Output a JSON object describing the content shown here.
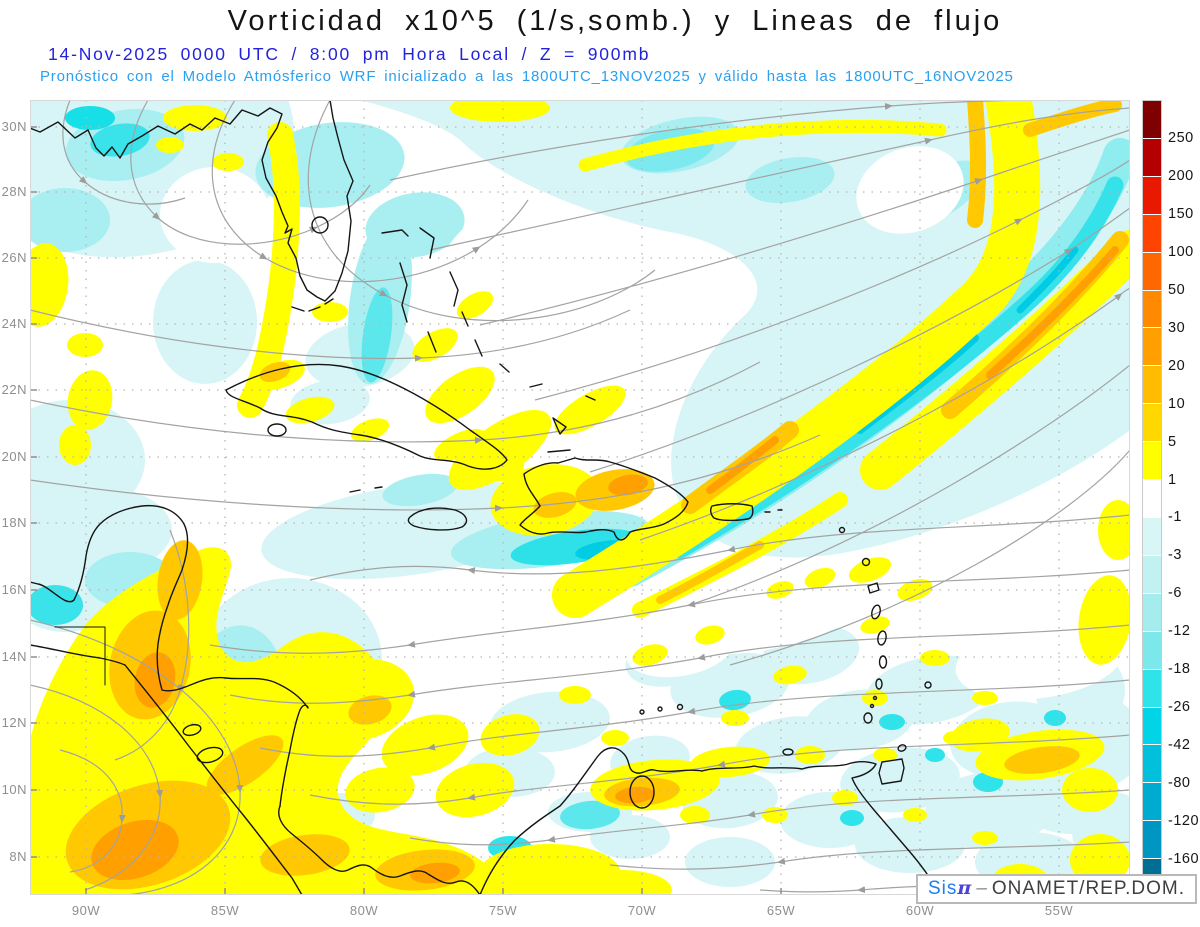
{
  "header": {
    "title": "Vorticidad x10^5 (1/s,somb.) y Lineas de flujo",
    "subtitle1": "14-Nov-2025  0000 UTC / 8:00 pm Hora Local / Z = 900mb",
    "subtitle2": "Pronóstico con el Modelo Atmósferico WRF inicializado a las 1800UTC_13NOV2025 y válido hasta las  1800UTC_16NOV2025"
  },
  "chart_data": {
    "type": "heatmap",
    "title": "Vorticidad x10^5 (1/s,somb.) y Lineas de flujo",
    "field": "relative vorticity x10^5 (1/s), shaded, with streamlines at 900 mb",
    "valid_time": "14-Nov-2025 0000 UTC / 8:00 pm Hora Local",
    "level": "900mb",
    "model": "WRF",
    "initialized": "1800UTC_13NOV2025",
    "valid_until": "1800UTC_16NOV2025",
    "region": "Caribbean / Gulf of Mexico / Central America",
    "x_ticks": [
      "90W",
      "85W",
      "80W",
      "75W",
      "70W",
      "65W",
      "60W",
      "55W"
    ],
    "y_ticks": [
      "30N",
      "28N",
      "26N",
      "24N",
      "22N",
      "20N",
      "18N",
      "16N",
      "14N",
      "12N",
      "10N",
      "8N"
    ],
    "xlim_deg_west": [
      92,
      52.6
    ],
    "ylim_deg_north": [
      6.9,
      31
    ],
    "grid": "dotted",
    "legend_position": "right",
    "colorbar": {
      "boundary_labels": [
        "250",
        "200",
        "150",
        "100",
        "50",
        "30",
        "20",
        "10",
        "5",
        "1",
        "-1",
        "-3",
        "-6",
        "-12",
        "-18",
        "-26",
        "-42",
        "-80",
        "-120",
        "-160"
      ],
      "colors": [
        "#7f0000",
        "#b40000",
        "#e81900",
        "#ff4300",
        "#ff6800",
        "#ff8900",
        "#ffa000",
        "#ffbc00",
        "#ffd800",
        "#ffff00",
        "#ffffff",
        "#d9f6f6",
        "#c2f1f1",
        "#a5ecee",
        "#7ce8ec",
        "#2ee3ea",
        "#00d4e6",
        "#00c0dc",
        "#00abd0",
        "#0096c2",
        "#006f94"
      ]
    },
    "shading_colors": {
      "positive_weak": "#ffff00",
      "positive_strong": "#ffc800",
      "positive_core": "#ffa000",
      "negative_weak": "#d7f5f6",
      "negative_mid": "#7deef2",
      "negative_strong": "#17dfe8"
    },
    "flow": "streamlines with gray arrowheads; anticyclonic gyre over Gulf of Mexico, SW-NE subtropical jet band in NE quadrant, easterlies across the tropical Atlantic and Caribbean"
  },
  "watermark": {
    "brand": "Sis",
    "pi": "π",
    "dash": "–",
    "org": "ONAMET/REP.DOM."
  }
}
